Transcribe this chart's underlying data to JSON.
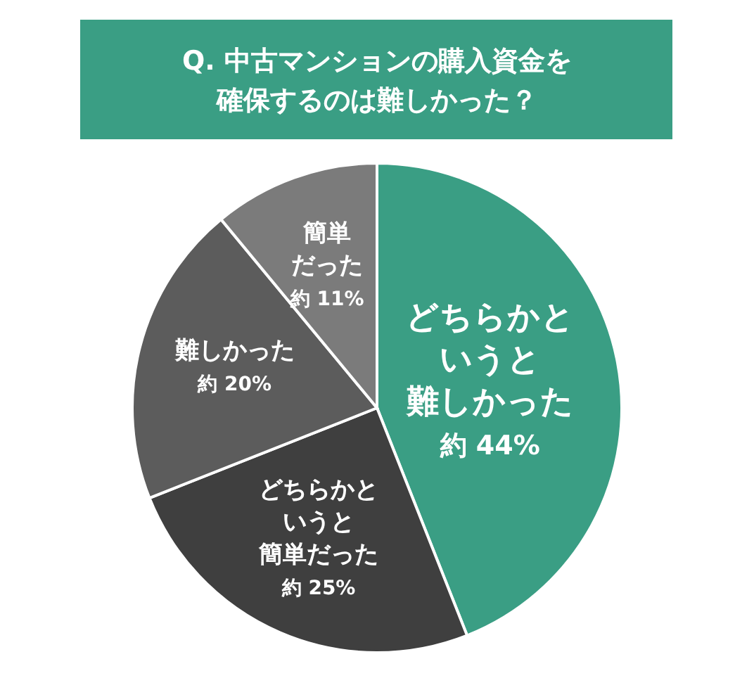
{
  "chart_data": {
    "type": "pie",
    "title": "Q. 中古マンションの購入資金を確保するのは難しかった？",
    "categories": [
      "どちらかというと難しかった",
      "どちらかというと簡単だった",
      "難しかった",
      "簡単だった"
    ],
    "values": [
      44,
      25,
      20,
      11
    ],
    "colors": [
      "#3a9e84",
      "#3f3f3f",
      "#5c5c5c",
      "#7b7b7b"
    ],
    "value_labels": [
      "約 44%",
      "約 25%",
      "約 20%",
      "約 11%"
    ]
  }
}
